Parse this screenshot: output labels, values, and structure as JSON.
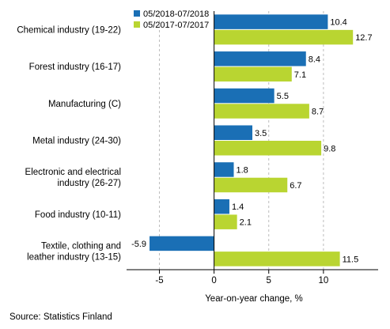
{
  "chart_data": {
    "type": "bar",
    "orientation": "horizontal",
    "categories": [
      "Chemical industry (19-22)",
      "Forest industry (16-17)",
      "Manufacturing (C)",
      "Metal industry (24-30)",
      "Electronic and electrical industry (26-27)",
      "Food industry (10-11)",
      "Textile, clothing and leather industry (13-15)"
    ],
    "category_lines": [
      [
        "Chemical industry (19-22)"
      ],
      [
        "Forest industry (16-17)"
      ],
      [
        "Manufacturing (C)"
      ],
      [
        "Metal industry (24-30)"
      ],
      [
        "Electronic and electrical",
        "industry (26-27)"
      ],
      [
        "Food industry (10-11)"
      ],
      [
        "Textile, clothing and",
        "leather industry (13-15)"
      ]
    ],
    "series": [
      {
        "name": "05/2018-07/2018",
        "color": "#1a6fb5",
        "values": [
          10.4,
          8.4,
          5.5,
          3.5,
          1.8,
          1.4,
          -5.9
        ]
      },
      {
        "name": "05/2017-07/2017",
        "color": "#b9d531",
        "values": [
          12.7,
          7.1,
          8.7,
          9.8,
          6.7,
          2.1,
          11.5
        ]
      }
    ],
    "value_labels": [
      [
        "10.4",
        "8.4",
        "5.5",
        "3.5",
        "1.8",
        "1.4",
        "-5.9"
      ],
      [
        "12.7",
        "7.1",
        "8.7",
        "9.8",
        "6.7",
        "2.1",
        "11.5"
      ]
    ],
    "xlim": [
      -8,
      15
    ],
    "xticks": [
      -5,
      0,
      5,
      10
    ],
    "xtick_labels": [
      "-5",
      "0",
      "5",
      "10"
    ],
    "xlabel": "Year-on-year change, %",
    "grid": "vertical dashed",
    "legend": "top-left"
  },
  "source": "Source: Statistics Finland"
}
